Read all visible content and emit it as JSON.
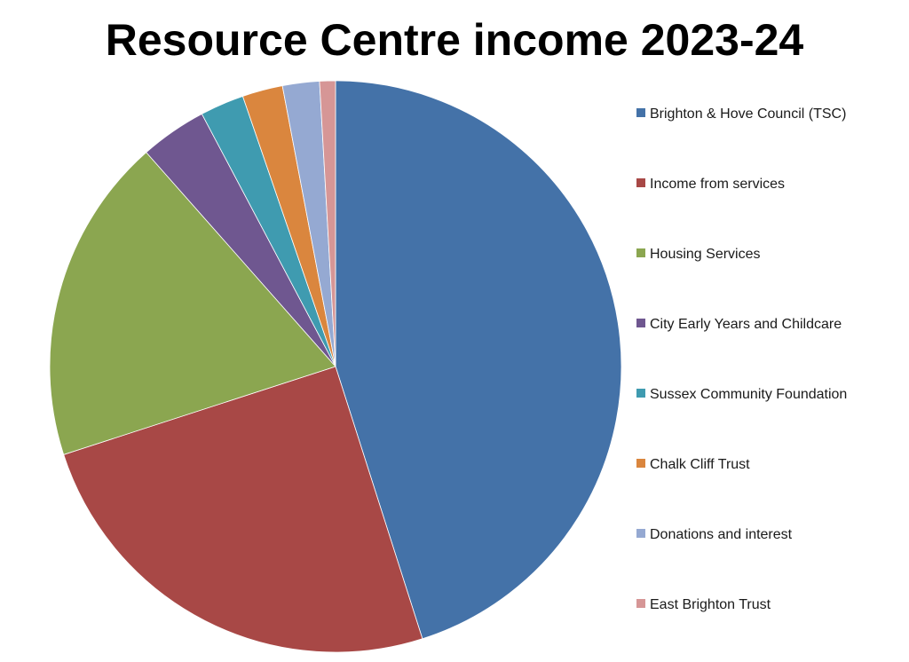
{
  "chart_data": {
    "type": "pie",
    "title": "Resource Centre income 2023-24",
    "start_angle_deg": 0,
    "direction": "clockwise",
    "legend_position": "right",
    "slices": [
      {
        "label": "Brighton & Hove Council (TSC)",
        "value": 45.4,
        "color": "#4472A8"
      },
      {
        "label": "Income from services",
        "value": 25.1,
        "color": "#A84846"
      },
      {
        "label": "Housing Services",
        "value": 18.6,
        "color": "#8BA650"
      },
      {
        "label": "City Early Years and Childcare",
        "value": 3.8,
        "color": "#6F5790"
      },
      {
        "label": "Sussex Community Foundation",
        "value": 2.5,
        "color": "#3F9BB0"
      },
      {
        "label": "Chalk Cliff Trust",
        "value": 2.3,
        "color": "#DA863E"
      },
      {
        "label": "Donations and interest",
        "value": 2.1,
        "color": "#95A9D2"
      },
      {
        "label": "East Brighton Trust",
        "value": 0.9,
        "color": "#D69696"
      }
    ]
  }
}
